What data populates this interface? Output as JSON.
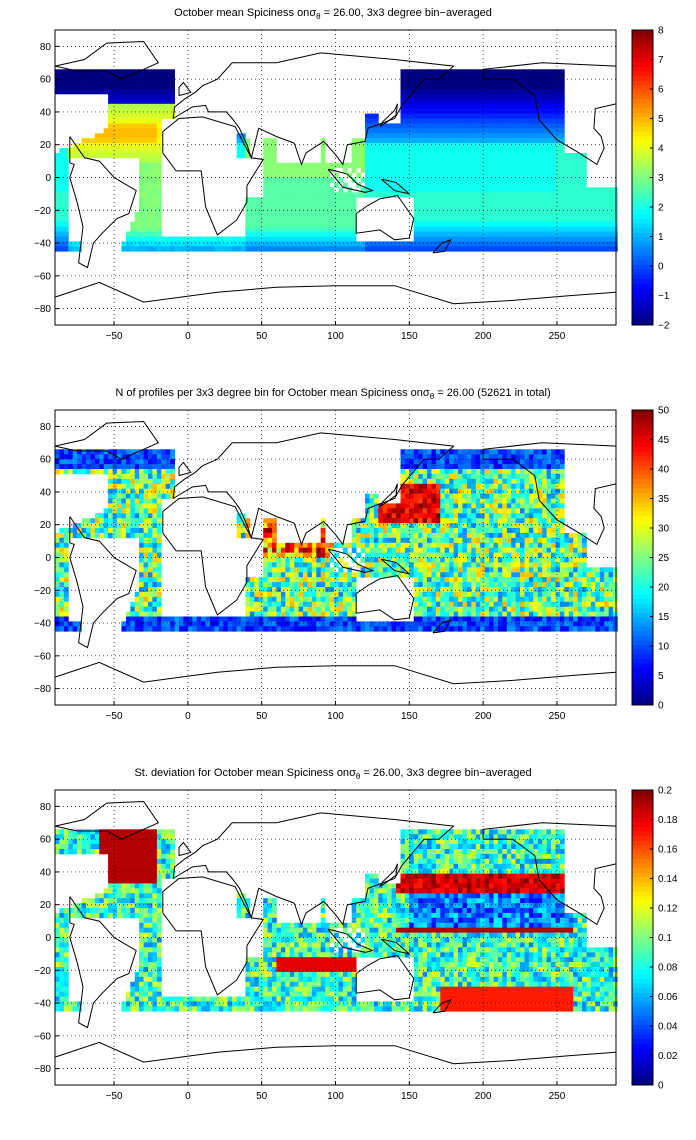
{
  "maps": [
    {
      "title_prefix": "October mean Spiciness on",
      "title_sigma": "σ",
      "title_sub": "θ",
      "title_suffix": " = 26.00, 3x3 degree bin−averaged",
      "colorbar": {
        "min": -2,
        "max": 8,
        "ticks": [
          "8",
          "7",
          "6",
          "5",
          "4",
          "3",
          "2",
          "1",
          "0",
          "−1",
          "−2"
        ]
      },
      "field": "spiciness"
    },
    {
      "title_prefix": "N of profiles per 3x3 degree bin for October mean Spiciness on",
      "title_sigma": "σ",
      "title_sub": "θ",
      "title_suffix": " = 26.00 (52621 in total)",
      "colorbar": {
        "min": 0,
        "max": 50,
        "ticks": [
          "50",
          "45",
          "40",
          "35",
          "30",
          "25",
          "20",
          "15",
          "10",
          "5",
          "0"
        ]
      },
      "field": "counts"
    },
    {
      "title_prefix": "St. deviation for October mean Spiciness on",
      "title_sigma": "σ",
      "title_sub": "θ",
      "title_suffix": " = 26.00, 3x3 degree bin−averaged",
      "colorbar": {
        "min": 0,
        "max": 0.2,
        "ticks": [
          "0.2",
          "0.18",
          "0.16",
          "0.14",
          "0.12",
          "0.1",
          "0.08",
          "0.06",
          "0.04",
          "0.02",
          "0"
        ]
      },
      "field": "stdev"
    }
  ],
  "axes": {
    "x_ticks": [
      "−50",
      "0",
      "50",
      "100",
      "150",
      "200",
      "250"
    ],
    "x_values": [
      -50,
      0,
      50,
      100,
      150,
      200,
      250
    ],
    "y_ticks": [
      "80",
      "60",
      "40",
      "20",
      "0",
      "−20",
      "−40",
      "−60",
      "−80"
    ],
    "y_values": [
      80,
      60,
      40,
      20,
      0,
      -20,
      -40,
      -60,
      -80
    ],
    "xlim": [
      -90,
      290
    ],
    "ylim": [
      -90,
      90
    ]
  },
  "colormap": "jet"
}
